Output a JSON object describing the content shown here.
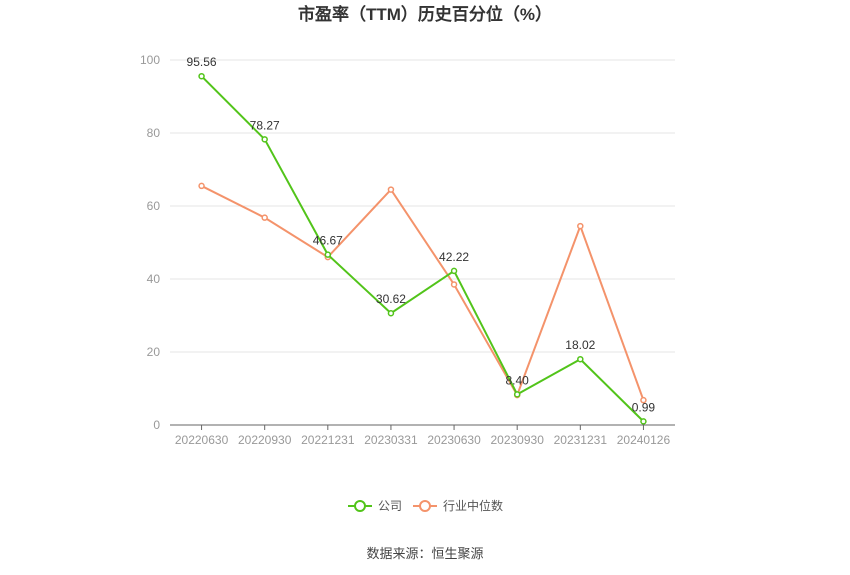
{
  "chart_data": {
    "type": "line",
    "title": "市盈率（TTM）历史百分位（%）",
    "xlabel": "",
    "ylabel": "",
    "ylim": [
      0,
      100
    ],
    "yticks": [
      0,
      20,
      40,
      60,
      80,
      100
    ],
    "grid": true,
    "legend_position": "bottom",
    "categories": [
      "20220630",
      "20220930",
      "20221231",
      "20230331",
      "20230630",
      "20230930",
      "20231231",
      "20240126"
    ],
    "series": [
      {
        "name": "公司",
        "color": "#52c41a",
        "values": [
          95.56,
          78.27,
          46.67,
          30.62,
          42.22,
          8.4,
          18.02,
          0.99
        ],
        "labels": [
          "95.56",
          "78.27",
          "46.67",
          "30.62",
          "42.22",
          "8.40",
          "18.02",
          "0.99"
        ]
      },
      {
        "name": "行业中位数",
        "color": "#f4936b",
        "values": [
          65.5,
          56.8,
          46.0,
          64.5,
          38.5,
          8.2,
          54.5,
          6.8
        ]
      }
    ]
  },
  "source": "数据来源：恒生聚源"
}
